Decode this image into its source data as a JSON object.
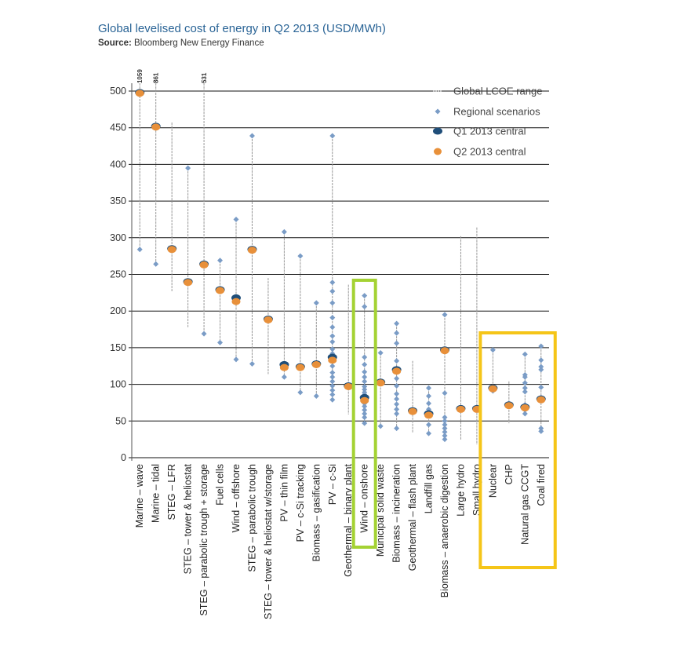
{
  "title": "Global levelised cost of energy in Q2 2013 (USD/MWh)",
  "source_label": "Source:",
  "source_text": "Bloomberg New Energy Finance",
  "chart_data": {
    "type": "scatter",
    "ylim": [
      0,
      500
    ],
    "yticks": [
      0,
      50,
      100,
      150,
      200,
      250,
      300,
      350,
      400,
      450,
      500
    ],
    "grid": true,
    "legend_placement": "top-right",
    "legend": [
      {
        "key": "range",
        "label": "Global LCOE range"
      },
      {
        "key": "regional",
        "label": "Regional scenarios"
      },
      {
        "key": "q1",
        "label": "Q1 2013 central"
      },
      {
        "key": "q2",
        "label": "Q2 2013 central"
      }
    ],
    "colors": {
      "range": "#999999",
      "regional": "#7a9cc6",
      "q1": "#1f4e79",
      "q2": "#e8903a",
      "grid": "#111111",
      "highlight_green": "#a4d233",
      "highlight_yellow": "#f5c518"
    },
    "highlights": [
      {
        "color": "green",
        "categories": [
          "Wind – onshore"
        ]
      },
      {
        "color": "yellow",
        "categories": [
          "Nuclear",
          "CHP",
          "Natural gas CCGT",
          "Coal fired"
        ]
      }
    ],
    "categories": [
      {
        "name": "Marine – wave",
        "min": 284,
        "max": 1059,
        "max_label": "1059",
        "regional": [
          284
        ],
        "q1": 498,
        "q2": 498
      },
      {
        "name": "Marine – tidal",
        "min": 264,
        "max": 861,
        "max_label": "861",
        "regional": [
          264
        ],
        "q1": 452,
        "q2": 452
      },
      {
        "name": "STEG – LFR",
        "min": 227,
        "max": 457,
        "regional": [],
        "q1": 285,
        "q2": 285
      },
      {
        "name": "STEG – tower & heliostat",
        "min": 178,
        "max": 395,
        "regional": [
          395
        ],
        "q1": 240,
        "q2": 240
      },
      {
        "name": "STEG – parabolic trough + storage",
        "min": 169,
        "max": 531,
        "max_label": "531",
        "regional": [
          169
        ],
        "q1": 264,
        "q2": 264
      },
      {
        "name": "Fuel cells",
        "min": 157,
        "max": 269,
        "regional": [
          269,
          157
        ],
        "q1": 229,
        "q2": 229
      },
      {
        "name": "Wind – offshore",
        "min": 134,
        "max": 325,
        "regional": [
          325,
          134
        ],
        "q1": 218,
        "q2": 214
      },
      {
        "name": "STEG – parabolic trough",
        "min": 128,
        "max": 439,
        "regional": [
          439,
          128
        ],
        "q1": 284,
        "q2": 284
      },
      {
        "name": "STEG – tower & heliostat w/storage",
        "min": 114,
        "max": 245,
        "regional": [],
        "q1": 189,
        "q2": 189
      },
      {
        "name": "PV – thin film",
        "min": 110,
        "max": 308,
        "regional": [
          308,
          110
        ],
        "q1": 127,
        "q2": 124
      },
      {
        "name": "PV – c-Si tracking",
        "min": 89,
        "max": 275,
        "regional": [
          275,
          89
        ],
        "q1": 124,
        "q2": 124
      },
      {
        "name": "Biomass – gasification",
        "min": 84,
        "max": 211,
        "regional": [
          211,
          84
        ],
        "q1": 128,
        "q2": 128
      },
      {
        "name": "PV – c-Si",
        "min": 79,
        "max": 439,
        "regional": [
          439,
          239,
          227,
          211,
          191,
          178,
          166,
          158,
          148,
          142,
          125,
          116,
          110,
          104,
          98,
          92,
          86,
          79
        ],
        "q1": 137,
        "q2": 134
      },
      {
        "name": "Geothermal – binary plant",
        "min": 59,
        "max": 236,
        "regional": [],
        "q1": 98,
        "q2": 98
      },
      {
        "name": "Wind – onshore",
        "min": 47,
        "max": 221,
        "regional": [
          221,
          206,
          137,
          127,
          117,
          110,
          104,
          97,
          93,
          89,
          86,
          82,
          78,
          74,
          70,
          65,
          60,
          55,
          47
        ],
        "q1": 82,
        "q2": 79
      },
      {
        "name": "Municipal solid waste",
        "min": 43,
        "max": 143,
        "regional": [
          143,
          43
        ],
        "q1": 103,
        "q2": 103
      },
      {
        "name": "Biomass – incineration",
        "min": 40,
        "max": 183,
        "regional": [
          183,
          170,
          156,
          132,
          108,
          98,
          87,
          80,
          73,
          66,
          60,
          40
        ],
        "q1": 120,
        "q2": 119
      },
      {
        "name": "Geothermal – flash plant",
        "min": 34,
        "max": 132,
        "regional": [],
        "q1": 64,
        "q2": 64
      },
      {
        "name": "Landfill gas",
        "min": 33,
        "max": 95,
        "regional": [
          95,
          84,
          74,
          66,
          57,
          45,
          33
        ],
        "q1": 60,
        "q2": 59
      },
      {
        "name": "Biomass – anaerobic digestion",
        "min": 23,
        "max": 195,
        "regional": [
          195,
          88,
          55,
          50,
          45,
          40,
          35,
          30,
          25
        ],
        "q1": 147,
        "q2": 147
      },
      {
        "name": "Large hydro",
        "min": 24,
        "max": 302,
        "regional": [],
        "q1": 67,
        "q2": 67
      },
      {
        "name": "Small hydro",
        "min": 18,
        "max": 314,
        "regional": [],
        "q1": 67,
        "q2": 67
      },
      {
        "name": "Nuclear",
        "min": 91,
        "max": 147,
        "regional": [
          147,
          95,
          91
        ],
        "q1": 95,
        "q2": 95
      },
      {
        "name": "CHP",
        "min": 47,
        "max": 104,
        "regional": [],
        "q1": 72,
        "q2": 72
      },
      {
        "name": "Natural gas CCGT",
        "min": 60,
        "max": 141,
        "regional": [
          141,
          113,
          110,
          102,
          95,
          90,
          72,
          65,
          60
        ],
        "q1": 69,
        "q2": 69
      },
      {
        "name": "Coal fired",
        "min": 34,
        "max": 152,
        "regional": [
          152,
          133,
          124,
          120,
          96,
          82,
          80,
          40,
          36
        ],
        "q1": 80,
        "q2": 80
      }
    ]
  }
}
